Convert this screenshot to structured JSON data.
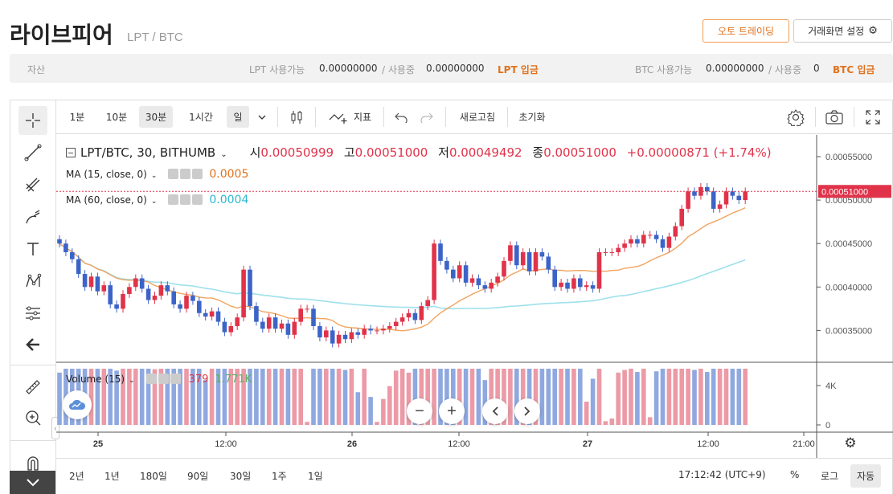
{
  "header": {
    "title": "라이브피어",
    "pair": "LPT / BTC",
    "auto_trade": "오토 트레이딩",
    "screen_settings": "거래화면 설정"
  },
  "assets": {
    "label": "자산",
    "lpt_avail_label": "LPT 사용가능",
    "lpt_avail": "0.00000000",
    "lpt_inuse_label": "/ 사용중",
    "lpt_inuse": "0.00000000",
    "lpt_deposit": "LPT 입금",
    "btc_avail_label": "BTC 사용가능",
    "btc_avail": "0.00000000",
    "btc_inuse_label": "/ 사용중",
    "btc_inuse": "0",
    "btc_deposit": "BTC 입금"
  },
  "toolbar": {
    "intervals": [
      "1분",
      "10분",
      "30분",
      "1시간",
      "일"
    ],
    "indicator": "지표",
    "refresh": "새로고침",
    "reset": "초기화"
  },
  "legend": {
    "symbol": "LPT/BTC, 30, BITHUMB",
    "o_label": "시",
    "o": "0.00050999",
    "h_label": "고",
    "h": "0.00051000",
    "l_label": "저",
    "l": "0.00049492",
    "c_label": "종",
    "c": "0.00051000",
    "change": "+0.00000871 (+1.74%)",
    "ma15": "MA (15, close, 0)",
    "ma15_val": "0.0005",
    "ma60": "MA (60, close, 0)",
    "ma60_val": "0.0004",
    "volume": "Volume (15)",
    "vol_val": "379",
    "vol_ma": "1.771K"
  },
  "price_axis": {
    "ticks": [
      "0.00055000",
      "0.00050000",
      "0.00045000",
      "0.00040000",
      "0.00035000"
    ],
    "current": "0.00051000"
  },
  "volume_axis": {
    "ticks": [
      "4K",
      "0"
    ]
  },
  "time_axis": {
    "ticks": [
      "25",
      "12:00",
      "26",
      "12:00",
      "27",
      "12:00",
      "21:00"
    ]
  },
  "bottom": {
    "ranges": [
      "2년",
      "1년",
      "180일",
      "90일",
      "30일",
      "1주",
      "1일"
    ],
    "clock": "17:12:42 (UTC+9)",
    "percent": "%",
    "log": "로그",
    "auto": "자동"
  },
  "colors": {
    "up": "#e0334a",
    "down": "#3c64c8",
    "ma15": "#f2a35f",
    "ma60": "#9ee0ec",
    "accent": "#e0721e"
  },
  "chart_data": {
    "type": "candlestick",
    "close_values": [
      0.00045,
      0.00044,
      0.000432,
      0.000415,
      0.0004,
      0.000412,
      0.000395,
      0.000402,
      0.00038,
      0.000375,
      0.000392,
      0.0004,
      0.00041,
      0.000398,
      0.000385,
      0.00039,
      0.000402,
      0.000395,
      0.00038,
      0.000375,
      0.00039,
      0.000384,
      0.00037,
      0.000366,
      0.000372,
      0.00036,
      0.000348,
      0.000355,
      0.000365,
      0.00042,
      0.000378,
      0.00036,
      0.000352,
      0.000365,
      0.000352,
      0.000358,
      0.000345,
      0.00036,
      0.000375,
      0.000375,
      0.000355,
      0.000342,
      0.00035,
      0.000335,
      0.000345,
      0.00034,
      0.000348,
      0.000345,
      0.000352,
      0.00035,
      0.00035,
      0.000352,
      0.000355,
      0.00036,
      0.000365,
      0.00037,
      0.000362,
      0.000378,
      0.000385,
      0.00045,
      0.00043,
      0.00042,
      0.00041,
      0.000425,
      0.000405,
      0.00041,
      0.000402,
      0.000398,
      0.000405,
      0.000412,
      0.00043,
      0.000448,
      0.000425,
      0.00044,
      0.000418,
      0.00044,
      0.000435,
      0.00042,
      0.0004,
      0.000405,
      0.000398,
      0.00041,
      0.0004,
      0.000402,
      0.000398,
      0.00044,
      0.00044,
      0.00044,
      0.000445,
      0.00045,
      0.000455,
      0.00045,
      0.00046,
      0.00046,
      0.000455,
      0.000445,
      0.000458,
      0.00047,
      0.00049,
      0.00051,
      0.000505,
      0.000515,
      0.00051,
      0.00049,
      0.000495,
      0.00051,
      0.000505,
      0.0005,
      0.00051
    ]
  }
}
